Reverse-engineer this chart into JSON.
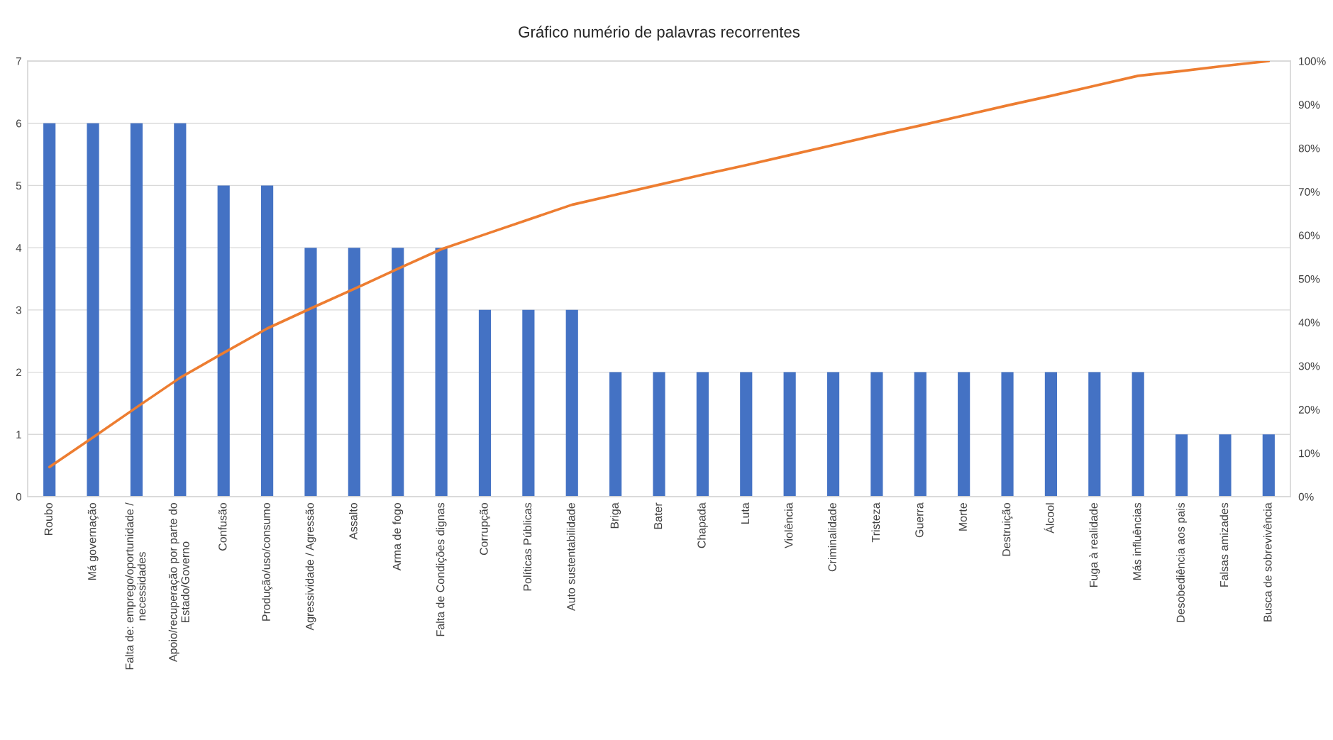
{
  "chart_data": {
    "type": "bar",
    "title": "Gráfico numério de palavras recorrentes",
    "categories": [
      "Roubo",
      "Má governação",
      "Falta de: emprego/oportunidade /\nnecessidades",
      "Apoio/recuperação por parte do\nEstado/Governo",
      "Confusão",
      "Produção/uso/consumo",
      "Agressividade / Agressão",
      "Assalto",
      "Arma de fogo",
      "Falta de Condições dignas",
      "Corrupção",
      "Políticas Públicas",
      "Auto sustentabilidade",
      "Briga",
      "Bater",
      "Chapada",
      "Luta",
      "Violência",
      "Criminalidade",
      "Tristeza",
      "Guerra",
      "Morte",
      "Destruição",
      "Álcool",
      "Fuga à realidade",
      "Más influências",
      "Desobediência aos pais",
      "Falsas amizades",
      "Busca de sobrevivência"
    ],
    "series": [
      {
        "color": "#4472c4",
        "values": [
          6,
          6,
          6,
          6,
          5,
          5,
          4,
          4,
          4,
          4,
          3,
          3,
          3,
          2,
          2,
          2,
          2,
          2,
          2,
          2,
          2,
          2,
          2,
          2,
          2,
          2,
          1,
          1,
          1
        ]
      },
      {
        "type": "line",
        "axis": "y2",
        "color": "#ed7d31",
        "values": [
          6.8,
          13.6,
          20.5,
          27.3,
          33.0,
          38.6,
          43.2,
          47.7,
          52.3,
          56.8,
          60.2,
          63.6,
          67.0,
          69.3,
          71.6,
          73.9,
          76.1,
          78.4,
          80.7,
          83.0,
          85.2,
          87.5,
          89.8,
          92.0,
          94.3,
          96.6,
          97.7,
          98.9,
          100
        ]
      }
    ],
    "ylim": [
      0,
      7
    ],
    "yticks": [
      0,
      1,
      2,
      3,
      4,
      5,
      6,
      7
    ],
    "y2lim": [
      0,
      100
    ],
    "y2ticks": [
      {
        "value": 0,
        "label": "0%"
      },
      {
        "value": 10,
        "label": "10%"
      },
      {
        "value": 20,
        "label": "20%"
      },
      {
        "value": 30,
        "label": "30%"
      },
      {
        "value": 40,
        "label": "40%"
      },
      {
        "value": 50,
        "label": "50%"
      },
      {
        "value": 60,
        "label": "60%"
      },
      {
        "value": 70,
        "label": "70%"
      },
      {
        "value": 80,
        "label": "80%"
      },
      {
        "value": 90,
        "label": "90%"
      },
      {
        "value": 100,
        "label": "100%"
      }
    ],
    "grid": "y"
  }
}
